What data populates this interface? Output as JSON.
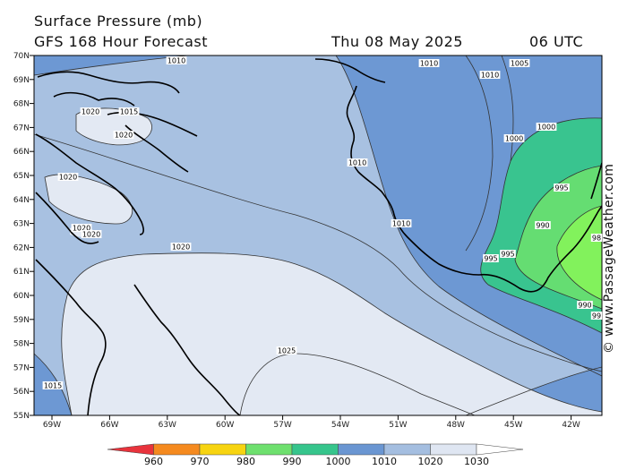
{
  "header": {
    "title": "Surface Pressure (mb)",
    "subtitle": "GFS 168 Hour Forecast",
    "date": "Thu 08 May 2025",
    "time": "06 UTC"
  },
  "credit": "© www.PassageWeather.com",
  "axes": {
    "lat_labels": [
      "70N",
      "69N",
      "68N",
      "67N",
      "66N",
      "65N",
      "64N",
      "63N",
      "62N",
      "61N",
      "60N",
      "59N",
      "58N",
      "57N",
      "56N",
      "55N"
    ],
    "lon_labels": [
      "69W",
      "66W",
      "63W",
      "60W",
      "57W",
      "54W",
      "51W",
      "48W",
      "45W",
      "42W"
    ]
  },
  "isobar_labels": [
    {
      "id": "l1010a",
      "text": "1010"
    },
    {
      "id": "l1010b",
      "text": "1010"
    },
    {
      "id": "l1010c",
      "text": "1010"
    },
    {
      "id": "l1005",
      "text": "1005"
    },
    {
      "id": "l1000a",
      "text": "1000"
    },
    {
      "id": "l1000b",
      "text": "1000"
    },
    {
      "id": "l1020a",
      "text": "1020"
    },
    {
      "id": "l1015a",
      "text": "1015"
    },
    {
      "id": "l1020b",
      "text": "1020"
    },
    {
      "id": "l1020c",
      "text": "1020"
    },
    {
      "id": "l1010d",
      "text": "1010"
    },
    {
      "id": "l1020d",
      "text": "1020"
    },
    {
      "id": "l1020e",
      "text": "1020"
    },
    {
      "id": "l995a",
      "text": "995"
    },
    {
      "id": "l1010e",
      "text": "1010"
    },
    {
      "id": "l990a",
      "text": "990"
    },
    {
      "id": "l1020f",
      "text": "1020"
    },
    {
      "id": "l985",
      "text": "98"
    },
    {
      "id": "l995b",
      "text": "995"
    },
    {
      "id": "l995c",
      "text": "995"
    },
    {
      "id": "l990b",
      "text": "990"
    },
    {
      "id": "l99",
      "text": "99"
    },
    {
      "id": "l1025",
      "text": "1025"
    },
    {
      "id": "l1015b",
      "text": "1015"
    }
  ],
  "legend": {
    "labels": [
      "960",
      "970",
      "980",
      "990",
      "1000",
      "1010",
      "1020",
      "1030"
    ],
    "colors": [
      "#e8333c",
      "#f58a1f",
      "#f7d411",
      "#6ee06e",
      "#36c58c",
      "#6a96d2",
      "#a4bee0",
      "#dfe6f2"
    ]
  },
  "colors": {
    "p1025": "#e3e9f3",
    "p1020": "#a8c1e1",
    "p1010": "#6d98d3",
    "p1000": "#39c48f",
    "p990": "#65dd72",
    "p980": "#82f25c",
    "coast": "#000000"
  }
}
